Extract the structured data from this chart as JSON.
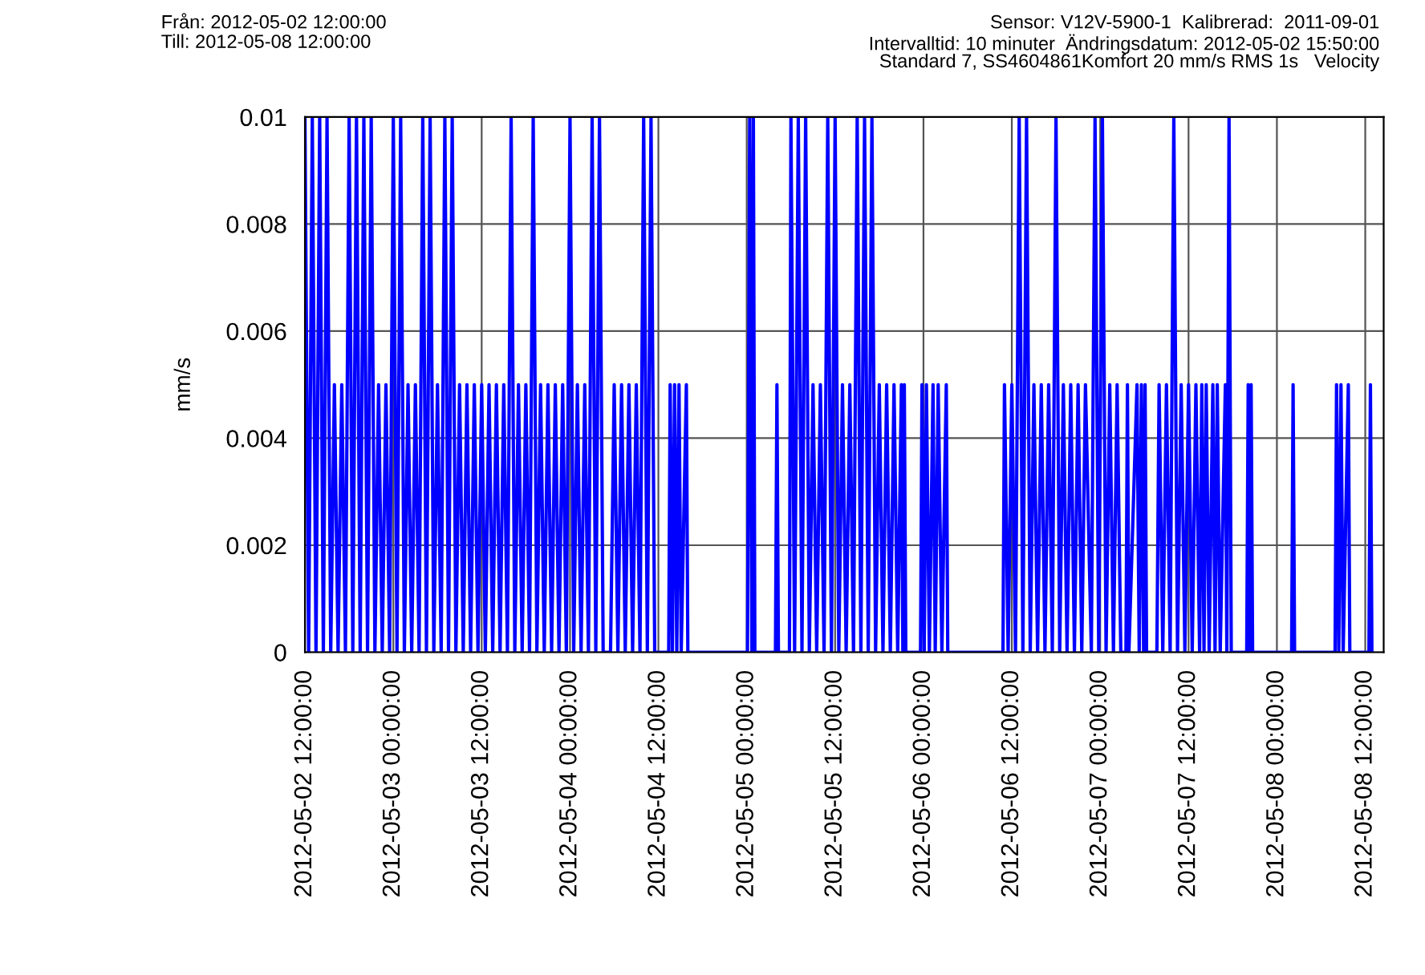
{
  "chart_data": {
    "type": "line",
    "ylabel": "mm/s",
    "annotations": [
      "Från: 2012-05-02 12:00:00",
      "Till: 2012-05-08 12:00:00",
      "Sensor: V12V-5900-1  Kalibrerad:  2011-09-01",
      "Intervalltid: 10 minuter  Ändringsdatum: 2012-05-02 15:50:00",
      "Standard 7, SS4604861Komfort 20 mm/s RMS 1s   Velocity"
    ],
    "xlim": [
      "2012-05-02T12:00",
      "2012-05-08T14:30"
    ],
    "xticks": [
      {
        "value": "2012-05-02T12:00",
        "label": "2012-05-02 12:00:00"
      },
      {
        "value": "2012-05-03T00:00",
        "label": "2012-05-03 00:00:00"
      },
      {
        "value": "2012-05-03T12:00",
        "label": "2012-05-03 12:00:00"
      },
      {
        "value": "2012-05-04T00:00",
        "label": "2012-05-04 00:00:00"
      },
      {
        "value": "2012-05-04T12:00",
        "label": "2012-05-04 12:00:00"
      },
      {
        "value": "2012-05-05T00:00",
        "label": "2012-05-05 00:00:00"
      },
      {
        "value": "2012-05-05T12:00",
        "label": "2012-05-05 12:00:00"
      },
      {
        "value": "2012-05-06T00:00",
        "label": "2012-05-06 00:00:00"
      },
      {
        "value": "2012-05-06T12:00",
        "label": "2012-05-06 12:00:00"
      },
      {
        "value": "2012-05-07T00:00",
        "label": "2012-05-07 00:00:00"
      },
      {
        "value": "2012-05-07T12:00",
        "label": "2012-05-07 12:00:00"
      },
      {
        "value": "2012-05-08T00:00",
        "label": "2012-05-08 00:00:00"
      },
      {
        "value": "2012-05-08T12:00",
        "label": "2012-05-08 12:00:00"
      }
    ],
    "ylim": [
      0,
      0.01
    ],
    "yticks": [
      0,
      0.002,
      0.004,
      0.006,
      0.008,
      0.01
    ],
    "grid": true,
    "marker": "none",
    "line_style": "solid",
    "series": [
      {
        "color": "#0000ff",
        "x": [
          "2012-05-02T12:00",
          "2012-05-02T12:30",
          "2012-05-02T13:00",
          "2012-05-02T13:30",
          "2012-05-02T14:00",
          "2012-05-02T14:30",
          "2012-05-02T15:00",
          "2012-05-02T15:30",
          "2012-05-02T16:00",
          "2012-05-02T16:30",
          "2012-05-02T17:00",
          "2012-05-02T17:30",
          "2012-05-02T18:00",
          "2012-05-02T18:30",
          "2012-05-02T19:00",
          "2012-05-02T19:30",
          "2012-05-02T20:00",
          "2012-05-02T20:30",
          "2012-05-02T21:00",
          "2012-05-02T21:30",
          "2012-05-02T22:00",
          "2012-05-02T22:30",
          "2012-05-02T23:00",
          "2012-05-02T23:30",
          "2012-05-03T00:00",
          "2012-05-03T00:30",
          "2012-05-03T01:00",
          "2012-05-03T01:30",
          "2012-05-03T02:00",
          "2012-05-03T02:30",
          "2012-05-03T03:00",
          "2012-05-03T03:30",
          "2012-05-03T04:00",
          "2012-05-03T04:30",
          "2012-05-03T05:00",
          "2012-05-03T05:30",
          "2012-05-03T06:00",
          "2012-05-03T06:30",
          "2012-05-03T07:00",
          "2012-05-03T07:30",
          "2012-05-03T08:00",
          "2012-05-03T08:30",
          "2012-05-03T09:00",
          "2012-05-03T09:30",
          "2012-05-03T10:00",
          "2012-05-03T10:30",
          "2012-05-03T11:00",
          "2012-05-03T11:30",
          "2012-05-03T12:00",
          "2012-05-03T12:30",
          "2012-05-03T13:00",
          "2012-05-03T13:30",
          "2012-05-03T14:00",
          "2012-05-03T14:30",
          "2012-05-03T15:00",
          "2012-05-03T15:30",
          "2012-05-03T16:00",
          "2012-05-03T16:30",
          "2012-05-03T17:00",
          "2012-05-03T17:30",
          "2012-05-03T18:00",
          "2012-05-03T18:30",
          "2012-05-03T19:00",
          "2012-05-03T19:30",
          "2012-05-03T20:00",
          "2012-05-03T20:30",
          "2012-05-03T21:00",
          "2012-05-03T21:30",
          "2012-05-03T22:00",
          "2012-05-03T22:30",
          "2012-05-03T23:00",
          "2012-05-03T23:30",
          "2012-05-04T00:00",
          "2012-05-04T00:30",
          "2012-05-04T01:00",
          "2012-05-04T01:30",
          "2012-05-04T02:00",
          "2012-05-04T02:30",
          "2012-05-04T03:00",
          "2012-05-04T03:30",
          "2012-05-04T04:00",
          "2012-05-04T04:30",
          "2012-05-04T05:30",
          "2012-05-04T06:00",
          "2012-05-04T06:30",
          "2012-05-04T07:00",
          "2012-05-04T07:30",
          "2012-05-04T08:00",
          "2012-05-04T08:30",
          "2012-05-04T09:00",
          "2012-05-04T09:30",
          "2012-05-04T10:00",
          "2012-05-04T10:30",
          "2012-05-04T11:00",
          "2012-05-04T11:30",
          "2012-05-04T13:24",
          "2012-05-04T13:36",
          "2012-05-04T13:54",
          "2012-05-04T14:12",
          "2012-05-04T14:30",
          "2012-05-04T14:48",
          "2012-05-04T15:06",
          "2012-05-04T15:48",
          "2012-05-04T16:00",
          "2012-05-05T00:06",
          "2012-05-05T00:24",
          "2012-05-05T00:42",
          "2012-05-05T00:54",
          "2012-05-05T01:06",
          "2012-05-05T03:54",
          "2012-05-05T04:06",
          "2012-05-05T04:18",
          "2012-05-05T05:48",
          "2012-05-05T06:00",
          "2012-05-05T06:30",
          "2012-05-05T07:00",
          "2012-05-05T07:30",
          "2012-05-05T08:00",
          "2012-05-05T08:30",
          "2012-05-05T09:00",
          "2012-05-05T09:30",
          "2012-05-05T10:00",
          "2012-05-05T10:30",
          "2012-05-05T11:00",
          "2012-05-05T11:30",
          "2012-05-05T12:00",
          "2012-05-05T12:30",
          "2012-05-05T13:00",
          "2012-05-05T13:30",
          "2012-05-05T14:00",
          "2012-05-05T14:30",
          "2012-05-05T15:00",
          "2012-05-05T15:30",
          "2012-05-05T16:00",
          "2012-05-05T16:30",
          "2012-05-05T17:00",
          "2012-05-05T17:30",
          "2012-05-05T18:00",
          "2012-05-05T18:30",
          "2012-05-05T19:00",
          "2012-05-05T19:30",
          "2012-05-05T20:00",
          "2012-05-05T20:30",
          "2012-05-05T21:00",
          "2012-05-05T21:12",
          "2012-05-05T21:24",
          "2012-05-05T21:36",
          "2012-05-05T23:36",
          "2012-05-05T23:48",
          "2012-05-06T00:06",
          "2012-05-06T00:24",
          "2012-05-06T00:48",
          "2012-05-06T01:18",
          "2012-05-06T01:36",
          "2012-05-06T02:00",
          "2012-05-06T02:30",
          "2012-05-06T03:06",
          "2012-05-06T03:18",
          "2012-05-06T10:48",
          "2012-05-06T11:00",
          "2012-05-06T11:30",
          "2012-05-06T12:00",
          "2012-05-06T12:30",
          "2012-05-06T13:00",
          "2012-05-06T13:30",
          "2012-05-06T14:00",
          "2012-05-06T14:30",
          "2012-05-06T15:00",
          "2012-05-06T15:30",
          "2012-05-06T16:00",
          "2012-05-06T16:30",
          "2012-05-06T17:00",
          "2012-05-06T17:30",
          "2012-05-06T18:00",
          "2012-05-06T18:30",
          "2012-05-06T19:00",
          "2012-05-06T19:30",
          "2012-05-06T20:00",
          "2012-05-06T20:30",
          "2012-05-06T21:00",
          "2012-05-06T21:30",
          "2012-05-06T22:00",
          "2012-05-06T22:48",
          "2012-05-06T23:18",
          "2012-05-06T23:48",
          "2012-05-07T00:18",
          "2012-05-07T00:48",
          "2012-05-07T01:18",
          "2012-05-07T01:48",
          "2012-05-07T02:18",
          "2012-05-07T02:48",
          "2012-05-07T03:30",
          "2012-05-07T03:42",
          "2012-05-07T03:54",
          "2012-05-07T05:00",
          "2012-05-07T05:18",
          "2012-05-07T05:36",
          "2012-05-07T05:54",
          "2012-05-07T06:06",
          "2012-05-07T06:18",
          "2012-05-07T07:42",
          "2012-05-07T08:00",
          "2012-05-07T08:30",
          "2012-05-07T09:00",
          "2012-05-07T09:30",
          "2012-05-07T10:00",
          "2012-05-07T10:30",
          "2012-05-07T11:00",
          "2012-05-07T11:30",
          "2012-05-07T12:00",
          "2012-05-07T12:30",
          "2012-05-07T13:00",
          "2012-05-07T13:30",
          "2012-05-07T13:48",
          "2012-05-07T14:06",
          "2012-05-07T14:24",
          "2012-05-07T14:48",
          "2012-05-07T15:18",
          "2012-05-07T15:36",
          "2012-05-07T15:54",
          "2012-05-07T16:18",
          "2012-05-07T17:00",
          "2012-05-07T17:12",
          "2012-05-07T17:30",
          "2012-05-07T17:48",
          "2012-05-07T19:54",
          "2012-05-07T20:06",
          "2012-05-07T20:18",
          "2012-05-07T20:30",
          "2012-05-07T20:42",
          "2012-05-08T02:00",
          "2012-05-08T02:12",
          "2012-05-08T02:24",
          "2012-05-08T07:54",
          "2012-05-08T08:06",
          "2012-05-08T08:24",
          "2012-05-08T08:42",
          "2012-05-08T09:00",
          "2012-05-08T09:42",
          "2012-05-08T09:54",
          "2012-05-08T12:30",
          "2012-05-08T12:42",
          "2012-05-08T12:54"
        ],
        "values": [
          0.01,
          0,
          0.01,
          0,
          0.01,
          0,
          0.01,
          0,
          0.005,
          0,
          0.005,
          0,
          0.01,
          0,
          0.01,
          0,
          0.01,
          0,
          0.01,
          0,
          0.005,
          0,
          0.005,
          0,
          0.01,
          0,
          0.01,
          0,
          0.005,
          0,
          0.005,
          0,
          0.01,
          0,
          0.01,
          0,
          0.005,
          0,
          0.01,
          0,
          0.01,
          0,
          0.005,
          0,
          0.005,
          0,
          0.005,
          0,
          0.005,
          0,
          0.005,
          0,
          0.005,
          0,
          0.005,
          0,
          0.01,
          0,
          0.005,
          0,
          0.005,
          0,
          0.01,
          0,
          0.005,
          0,
          0.005,
          0,
          0.005,
          0,
          0.005,
          0,
          0.01,
          0,
          0.005,
          0,
          0.005,
          0,
          0.01,
          0,
          0.01,
          0,
          0,
          0.005,
          0,
          0.005,
          0,
          0.005,
          0,
          0.005,
          0,
          0.01,
          0,
          0.01,
          0,
          0,
          0.005,
          0,
          0.005,
          0,
          0.005,
          0,
          0.005,
          0,
          0,
          0.01,
          0,
          0.01,
          0,
          0,
          0.005,
          0,
          0,
          0.01,
          0,
          0.01,
          0,
          0.01,
          0,
          0.005,
          0,
          0.005,
          0,
          0.01,
          0,
          0.01,
          0,
          0.005,
          0,
          0.005,
          0,
          0.01,
          0,
          0.01,
          0,
          0.01,
          0,
          0.005,
          0,
          0.005,
          0,
          0.005,
          0,
          0.005,
          0,
          0.005,
          0,
          0,
          0.005,
          0,
          0.005,
          0,
          0.005,
          0,
          0.005,
          0,
          0.005,
          0,
          0,
          0.005,
          0,
          0.005,
          0,
          0.01,
          0,
          0.01,
          0,
          0.005,
          0,
          0.005,
          0,
          0.005,
          0,
          0.01,
          0,
          0.005,
          0,
          0.005,
          0,
          0.005,
          0,
          0.005,
          0,
          0.01,
          0,
          0.01,
          0,
          0.005,
          0,
          0.005,
          0,
          0,
          0.005,
          0,
          0.005,
          0,
          0.005,
          0,
          0.005,
          0,
          0,
          0.005,
          0,
          0.005,
          0,
          0.01,
          0,
          0.005,
          0,
          0.005,
          0,
          0.005,
          0,
          0.005,
          0,
          0.005,
          0,
          0.005,
          0,
          0.005,
          0,
          0.005,
          0,
          0.01,
          0,
          0,
          0.005,
          0,
          0.005,
          0,
          0,
          0.005,
          0,
          0,
          0.005,
          0,
          0.005,
          0,
          0.005,
          0,
          0,
          0.005,
          0
        ]
      }
    ]
  }
}
